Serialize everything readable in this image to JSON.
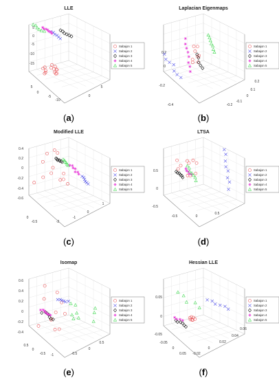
{
  "chart_data": [
    {
      "type": "scatter",
      "panel_label": "a",
      "title": "LLE",
      "projection": "3d",
      "grid": true,
      "legend_placement": "right",
      "tick_labels": [
        "5",
        "0",
        "-5",
        "-10",
        "-15",
        "5",
        "0",
        "-5",
        "-10",
        "0",
        "5"
      ],
      "series": [
        {
          "name": "Sabajon 1",
          "marker": "circle",
          "color": "#e8474b",
          "x": [
            -2,
            -1,
            0,
            1,
            2,
            -1.5,
            0.5,
            1.5,
            -0.5,
            0,
            1,
            -1,
            2.5,
            0.8
          ],
          "y": [
            0,
            0.5,
            -0.5,
            1,
            0,
            -1,
            0.3,
            -0.7,
            1.2,
            0,
            0.8,
            -0.4,
            0.2,
            -1.1
          ],
          "z": [
            -12,
            -11.5,
            -12.5,
            -12,
            -11,
            -13,
            -12.2,
            -11.8,
            -12.7,
            -13.5,
            -12.9,
            -11.2,
            -12.1,
            -13.1
          ]
        },
        {
          "name": "Sabajon 2",
          "marker": "x",
          "color": "#4b4be8",
          "x": [
            3,
            3.2,
            2.8,
            3.5,
            3.1,
            2.9
          ],
          "y": [
            1,
            1.2,
            0.8,
            1.1,
            0.9,
            1.3
          ],
          "z": [
            2,
            2.5,
            2.2,
            1.8,
            2.7,
            2.1
          ]
        },
        {
          "name": "Sabajon 3",
          "marker": "diamond",
          "color": "#000000",
          "x": [
            2,
            2.2,
            1.8,
            2.4,
            2.1,
            1.9
          ],
          "y": [
            0.5,
            0.6,
            0.4,
            0.7,
            0.5,
            0.3
          ],
          "z": [
            3,
            3.2,
            2.8,
            2.9,
            3.4,
            3.1
          ]
        },
        {
          "name": "Sabajon 4",
          "marker": "star",
          "color": "#e83ad8",
          "x": [
            0,
            0.3,
            -0.2,
            0.5,
            0.1,
            0.4,
            -0.1
          ],
          "y": [
            0,
            0.2,
            -0.1,
            0.1,
            0.3,
            -0.2,
            0.1
          ],
          "z": [
            3.5,
            3.8,
            3.3,
            3.6,
            4,
            3.4,
            3.9
          ]
        },
        {
          "name": "Sabajon 5",
          "marker": "triangle",
          "color": "#3ad84b",
          "x": [
            -1.5,
            -1.2,
            -1.8,
            -1.4,
            -1.6,
            -1.1
          ],
          "y": [
            -0.5,
            -0.3,
            -0.7,
            -0.4,
            -0.6,
            -0.2
          ],
          "z": [
            4.5,
            4.8,
            4.3,
            4.6,
            4.2,
            4.9
          ]
        }
      ]
    },
    {
      "type": "scatter",
      "panel_label": "b",
      "title": "Laplacian Eigenmaps",
      "projection": "3d",
      "grid": true,
      "legend_placement": "right",
      "tick_labels": [
        "0.2",
        "0",
        "-0.2",
        "-0.4",
        "0.2",
        "0.1",
        "0",
        "-0.1",
        "-0.2"
      ],
      "series": [
        {
          "name": "Sabajon 1",
          "marker": "circle",
          "color": "#e8474b",
          "x": [
            0.03,
            0.05,
            0.04,
            0.06,
            0.02,
            0.05,
            0.07,
            0.04
          ],
          "y": [
            0.05,
            0.06,
            0.04,
            0.03,
            0.07,
            0.02,
            0.05,
            0.04
          ],
          "z": [
            0.02,
            0.05,
            -0.01,
            0.04,
            0,
            0.06,
            -0.03,
            -0.05
          ]
        },
        {
          "name": "Sabajon 2",
          "marker": "x",
          "color": "#4b4be8",
          "x": [
            -0.3,
            -0.25,
            -0.2,
            -0.28,
            -0.22,
            -0.18,
            -0.15
          ],
          "y": [
            -0.2,
            -0.18,
            -0.15,
            -0.22,
            -0.17,
            -0.12,
            -0.14
          ],
          "z": [
            -0.05,
            0,
            -0.1,
            0.03,
            -0.06,
            -0.02,
            -0.12
          ]
        },
        {
          "name": "Sabajon 3",
          "marker": "diamond",
          "color": "#000000",
          "x": [
            0.06,
            0.07,
            0.08,
            0.065,
            0.075
          ],
          "y": [
            0.07,
            0.08,
            0.06,
            0.075,
            0.065
          ],
          "z": [
            0.05,
            0.03,
            0.01,
            0,
            -0.02
          ]
        },
        {
          "name": "Sabajon 4",
          "marker": "star",
          "color": "#e83ad8",
          "x": [
            -0.05,
            -0.02,
            0,
            0.02,
            -0.04,
            0.01,
            -0.03,
            0.03
          ],
          "y": [
            0,
            0.02,
            0.01,
            0.03,
            -0.01,
            0,
            0.02,
            0.01
          ],
          "z": [
            0.12,
            0.08,
            0.05,
            0.02,
            0.1,
            -0.02,
            0.15,
            0
          ]
        },
        {
          "name": "Sabajon 5",
          "marker": "triangle",
          "color": "#3ad84b",
          "x": [
            0.15,
            0.16,
            0.14,
            0.17,
            0.155,
            0.145,
            0.165
          ],
          "y": [
            0.12,
            0.13,
            0.11,
            0.14,
            0.125,
            0.115,
            0.135
          ],
          "z": [
            0.12,
            0.08,
            0.05,
            0.1,
            0.02,
            -0.02,
            0.06
          ]
        }
      ]
    },
    {
      "type": "scatter",
      "panel_label": "c",
      "title": "Modified LLE",
      "projection": "3d",
      "grid": true,
      "legend_placement": "right",
      "tick_labels": [
        "0.4",
        "0.2",
        "0",
        "-0.2",
        "-0.4",
        "-0.6",
        "0",
        "-0.5",
        "-2",
        "-1",
        "0",
        "1"
      ],
      "series": [
        {
          "name": "Sabajon 1",
          "marker": "circle",
          "color": "#e8474b",
          "x": [
            -1.5,
            -1.2,
            -0.8,
            -0.5,
            -1,
            -0.3,
            0.2,
            0.5,
            -0.7,
            -1.3,
            0.1,
            0.4
          ],
          "y": [
            0,
            0.1,
            -0.1,
            0.2,
            0.05,
            -0.2,
            0.15,
            0.3,
            -0.05,
            0.1,
            0.25,
            0
          ],
          "z": [
            -0.1,
            0.1,
            0.2,
            -0.3,
            -0.4,
            0.3,
            0.4,
            0.35,
            0,
            -0.2,
            -0.5,
            0.25
          ]
        },
        {
          "name": "Sabajon 2",
          "marker": "x",
          "color": "#4b4be8",
          "x": [
            1,
            1.05,
            0.95,
            1.1,
            1.02,
            0.98
          ],
          "y": [
            0.2,
            0.22,
            0.18,
            0.24,
            0.21,
            0.19
          ],
          "z": [
            -0.15,
            -0.18,
            -0.12,
            -0.2,
            -0.14,
            -0.17
          ]
        },
        {
          "name": "Sabajon 3",
          "marker": "diamond",
          "color": "#000000",
          "x": [
            -0.2,
            -0.18,
            -0.15,
            -0.22,
            -0.16,
            -0.19,
            -0.17
          ],
          "y": [
            0,
            0.01,
            -0.01,
            0.02,
            0,
            0.01,
            -0.02
          ],
          "z": [
            0.15,
            0.14,
            0.12,
            0.13,
            0.16,
            0.11,
            0.14
          ]
        },
        {
          "name": "Sabajon 4",
          "marker": "star",
          "color": "#e83ad8",
          "x": [
            0.4,
            0.45,
            0.5,
            0.55,
            0.48,
            0.42,
            0.52
          ],
          "y": [
            0.1,
            0.12,
            0.08,
            0.11,
            0.09,
            0.13,
            0.1
          ],
          "z": [
            0,
            0.05,
            -0.05,
            0.02,
            -0.03,
            0.04,
            -0.08
          ]
        },
        {
          "name": "Sabajon 5",
          "marker": "triangle",
          "color": "#3ad84b",
          "x": [
            0,
            0.05,
            -0.05,
            0.02,
            0.04,
            -0.02
          ],
          "y": [
            0.05,
            0.06,
            0.04,
            0.05,
            0.07,
            0.03
          ],
          "z": [
            0.18,
            0.16,
            0.14,
            0.12,
            0.17,
            0.13
          ]
        }
      ]
    },
    {
      "type": "scatter",
      "panel_label": "d",
      "title": "LTSA",
      "projection": "3d",
      "grid": true,
      "legend_placement": "right",
      "tick_labels": [
        "0.5",
        "0",
        "-0.5",
        "-0.5",
        "0",
        "0.5"
      ],
      "series": [
        {
          "name": "Sabajon 1",
          "marker": "circle",
          "color": "#e8474b",
          "x": [
            -0.1,
            0,
            0.1,
            0.2,
            0.3,
            0.25,
            0.35,
            -0.05,
            0.15,
            0.28
          ],
          "y": [
            0,
            0.05,
            0.1,
            0.08,
            0.12,
            0.15,
            0.1,
            -0.05,
            0.06,
            0.11
          ],
          "z": [
            0.3,
            0.25,
            0.35,
            0.05,
            0,
            0.02,
            -0.05,
            0.2,
            0.28,
            0.03
          ]
        },
        {
          "name": "Sabajon 2",
          "marker": "x",
          "color": "#4b4be8",
          "x": [
            0.5,
            0.52,
            0.55,
            0.58,
            0.6,
            0.62,
            0.54,
            0.57
          ],
          "y": [
            0.2,
            0.22,
            0.18,
            0.24,
            0.21,
            0.19,
            0.23,
            0.2
          ],
          "z": [
            0.35,
            0.25,
            0.15,
            0.05,
            -0.05,
            -0.15,
            -0.25,
            0.1
          ]
        },
        {
          "name": "Sabajon 3",
          "marker": "diamond",
          "color": "#000000",
          "x": [
            -0.3,
            -0.28,
            -0.25,
            -0.29,
            -0.26,
            -0.27
          ],
          "y": [
            -0.1,
            -0.08,
            -0.09,
            -0.11,
            -0.1,
            -0.07
          ],
          "z": [
            -0.1,
            -0.12,
            -0.08,
            -0.11,
            -0.09,
            -0.13
          ]
        },
        {
          "name": "Sabajon 4",
          "marker": "star",
          "color": "#e83ad8",
          "x": [
            -0.1,
            -0.08,
            -0.05,
            -0.07,
            -0.09
          ],
          "y": [
            -0.05,
            -0.04,
            -0.03,
            -0.06,
            -0.05
          ],
          "z": [
            -0.05,
            -0.02,
            0,
            -0.04,
            -0.07
          ]
        },
        {
          "name": "Sabajon 5",
          "marker": "triangle",
          "color": "#3ad84b",
          "x": [
            -0.2,
            -0.18,
            -0.15,
            -0.12,
            -0.16,
            -0.14,
            -0.19
          ],
          "y": [
            -0.08,
            -0.07,
            -0.06,
            -0.05,
            -0.07,
            -0.06,
            -0.08
          ],
          "z": [
            -0.08,
            -0.05,
            -0.02,
            0.02,
            -0.04,
            0,
            -0.06
          ]
        }
      ]
    },
    {
      "type": "scatter",
      "panel_label": "e",
      "title": "Isomap",
      "projection": "3d",
      "grid": true,
      "legend_placement": "right",
      "tick_labels": [
        "0.6",
        "0.4",
        "0.2",
        "0",
        "-0.2",
        "-0.4",
        "0.5",
        "0",
        "-0.5",
        "-1",
        "-0.5",
        "0",
        "0.5"
      ],
      "series": [
        {
          "name": "Sabajon 1",
          "marker": "circle",
          "color": "#e8474b",
          "x": [
            -0.5,
            -0.4,
            -0.3,
            -0.45,
            -0.35,
            -0.55,
            -0.25,
            -0.42,
            -0.38,
            -0.6,
            -0.2
          ],
          "y": [
            0,
            0.1,
            -0.1,
            0.05,
            -0.05,
            0.15,
            0.2,
            -0.15,
            0.12,
            0.02,
            -0.08
          ],
          "z": [
            0.5,
            0.4,
            0.3,
            -0.1,
            -0.3,
            -0.4,
            0,
            0.2,
            -0.2,
            0.1,
            -0.35
          ]
        },
        {
          "name": "Sabajon 2",
          "marker": "x",
          "color": "#4b4be8",
          "x": [
            -0.1,
            0,
            0.1,
            -0.05,
            0.05,
            0.08
          ],
          "y": [
            0.1,
            0.12,
            0.08,
            0.11,
            0.09,
            0.14
          ],
          "z": [
            0.05,
            0,
            -0.05,
            0.1,
            -0.1,
            0.08
          ]
        },
        {
          "name": "Sabajon 3",
          "marker": "diamond",
          "color": "#000000",
          "x": [
            -0.2,
            -0.15,
            -0.1,
            -0.18,
            -0.12,
            -0.22,
            -0.14
          ],
          "y": [
            0,
            0.02,
            -0.02,
            0.01,
            -0.01,
            0.03,
            0
          ],
          "z": [
            -0.1,
            -0.15,
            -0.2,
            -0.25,
            -0.12,
            -0.18,
            -0.3
          ]
        },
        {
          "name": "Sabajon 4",
          "marker": "star",
          "color": "#e83ad8",
          "x": [
            -0.3,
            -0.25,
            -0.28,
            -0.22,
            -0.26,
            -0.32,
            -0.24
          ],
          "y": [
            -0.05,
            -0.04,
            -0.06,
            -0.03,
            -0.05,
            -0.07,
            -0.02
          ],
          "z": [
            -0.15,
            -0.18,
            -0.2,
            -0.16,
            -0.22,
            -0.17,
            -0.19
          ]
        },
        {
          "name": "Sabajon 5",
          "marker": "triangle",
          "color": "#3ad84b",
          "x": [
            0.2,
            0.3,
            0.4,
            0.25,
            0.35,
            0.45,
            0.15,
            0.38,
            0.28
          ],
          "y": [
            0.1,
            0.15,
            0.2,
            0.12,
            0.18,
            0.22,
            0.05,
            0.25,
            0.08
          ],
          "z": [
            0.2,
            0.1,
            0,
            -0.1,
            0.3,
            -0.2,
            0.15,
            0.05,
            -0.15
          ]
        }
      ]
    },
    {
      "type": "scatter",
      "panel_label": "f",
      "title": "Hessian LLE",
      "projection": "3d",
      "grid": true,
      "legend_placement": "right",
      "tick_labels": [
        "0.05",
        "0",
        "-0.05",
        "-0.05",
        "0",
        "0.05",
        "-0.02",
        "0",
        "0.02",
        "0.04",
        "0.06"
      ],
      "series": [
        {
          "name": "Sabajon 1",
          "marker": "circle",
          "color": "#e8474b",
          "x": [
            0,
            0.005,
            -0.005,
            0.002,
            0.004,
            -0.003,
            0.001
          ],
          "y": [
            0,
            0.002,
            -0.002,
            0.001,
            0.003,
            -0.001,
            0
          ],
          "z": [
            -0.03,
            -0.035,
            -0.032,
            -0.038,
            -0.031,
            -0.036,
            -0.034
          ]
        },
        {
          "name": "Sabajon 2",
          "marker": "x",
          "color": "#4b4be8",
          "x": [
            0.03,
            0.035,
            0.04,
            0.045,
            0.05,
            0.038
          ],
          "y": [
            0.02,
            0.025,
            0.03,
            0.022,
            0.028,
            0.035
          ],
          "z": [
            0.01,
            0.015,
            0,
            0.02,
            0.005,
            0.012
          ]
        },
        {
          "name": "Sabajon 3",
          "marker": "diamond",
          "color": "#000000",
          "x": [
            -0.03,
            -0.028,
            -0.025,
            -0.032,
            -0.027,
            -0.01
          ],
          "y": [
            -0.01,
            -0.008,
            -0.012,
            -0.009,
            -0.011,
            0
          ],
          "z": [
            -0.03,
            -0.032,
            -0.034,
            -0.036,
            -0.031,
            -0.045
          ]
        },
        {
          "name": "Sabajon 4",
          "marker": "star",
          "color": "#e83ad8",
          "x": [
            -0.035,
            -0.033,
            -0.031,
            -0.034
          ],
          "y": [
            -0.012,
            -0.011,
            -0.013,
            -0.01
          ],
          "z": [
            -0.028,
            -0.03,
            -0.027,
            -0.031
          ]
        },
        {
          "name": "Sabajon 5",
          "marker": "triangle",
          "color": "#3ad84b",
          "x": [
            -0.02,
            -0.015,
            0.01,
            0.015,
            -0.01
          ],
          "y": [
            0,
            0.005,
            0.01,
            0.015,
            -0.005
          ],
          "z": [
            0.02,
            0.01,
            0.005,
            0.025,
            -0.01
          ]
        }
      ]
    }
  ]
}
